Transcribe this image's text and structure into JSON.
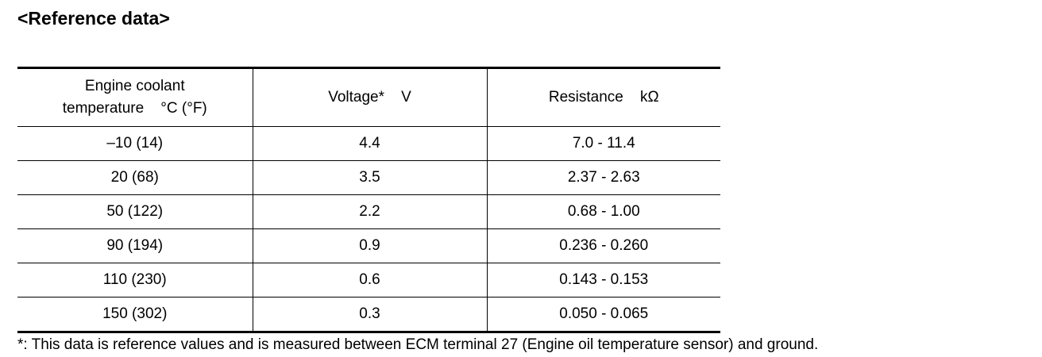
{
  "heading": "<Reference data>",
  "table": {
    "headers": {
      "temperature_line1": "Engine coolant",
      "temperature_line2": "temperature    °C (°F)",
      "voltage": "Voltage*    V",
      "resistance": "Resistance    kΩ"
    },
    "rows": [
      {
        "temperature": "–10 (14)",
        "voltage": "4.4",
        "resistance": "7.0 - 11.4"
      },
      {
        "temperature": "20 (68)",
        "voltage": "3.5",
        "resistance": "2.37 - 2.63"
      },
      {
        "temperature": "50 (122)",
        "voltage": "2.2",
        "resistance": "0.68 - 1.00"
      },
      {
        "temperature": "90 (194)",
        "voltage": "0.9",
        "resistance": "0.236 - 0.260"
      },
      {
        "temperature": "110 (230)",
        "voltage": "0.6",
        "resistance": "0.143 - 0.153"
      },
      {
        "temperature": "150 (302)",
        "voltage": "0.3",
        "resistance": "0.050 - 0.065"
      }
    ]
  },
  "footnote": "*: This data is reference values and is measured between ECM terminal 27 (Engine oil temperature sensor) and ground."
}
